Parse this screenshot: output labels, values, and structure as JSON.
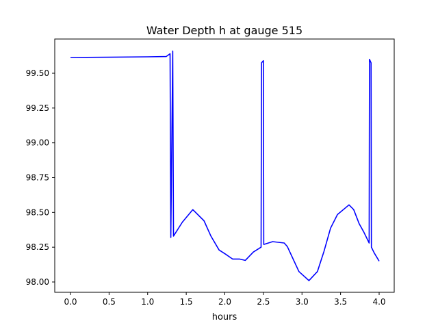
{
  "chart_data": {
    "type": "line",
    "title": "Water Depth h at gauge 515",
    "xlabel": "hours",
    "ylabel": "",
    "xlim": [
      -0.204,
      4.195
    ],
    "ylim": [
      97.926,
      99.746
    ],
    "xticks": [
      0.0,
      0.5,
      1.0,
      1.5,
      2.0,
      2.5,
      3.0,
      3.5,
      4.0
    ],
    "xtick_labels": [
      "0.0",
      "0.5",
      "1.0",
      "1.5",
      "2.0",
      "2.5",
      "3.0",
      "3.5",
      "4.0"
    ],
    "yticks": [
      98.0,
      98.25,
      98.5,
      98.75,
      99.0,
      99.25,
      99.5
    ],
    "ytick_labels": [
      "98.00",
      "98.25",
      "98.50",
      "98.75",
      "99.00",
      "99.25",
      "99.50"
    ],
    "grid": false,
    "series": [
      {
        "name": "h",
        "color": "#0000ff",
        "x": [
          0,
          0.5,
          1.0,
          1.24,
          1.29,
          1.3,
          1.325,
          1.335,
          1.45,
          1.585,
          1.73,
          1.82,
          1.925,
          2.01,
          2.1,
          2.19,
          2.265,
          2.37,
          2.47,
          2.475,
          2.5,
          2.505,
          2.62,
          2.77,
          2.81,
          2.96,
          3.09,
          3.2,
          3.285,
          3.37,
          3.46,
          3.61,
          3.67,
          3.74,
          3.8,
          3.87,
          3.875,
          3.895,
          3.9,
          3.935,
          4.0
        ],
        "y": [
          99.613,
          99.615,
          99.618,
          99.62,
          99.64,
          98.32,
          99.66,
          98.33,
          98.43,
          98.52,
          98.44,
          98.33,
          98.23,
          98.2,
          98.165,
          98.165,
          98.155,
          98.215,
          98.25,
          99.575,
          99.59,
          98.27,
          98.29,
          98.28,
          98.255,
          98.075,
          98.01,
          98.075,
          98.22,
          98.387,
          98.485,
          98.554,
          98.52,
          98.42,
          98.36,
          98.28,
          99.6,
          99.575,
          98.25,
          98.21,
          98.15
        ]
      }
    ]
  }
}
